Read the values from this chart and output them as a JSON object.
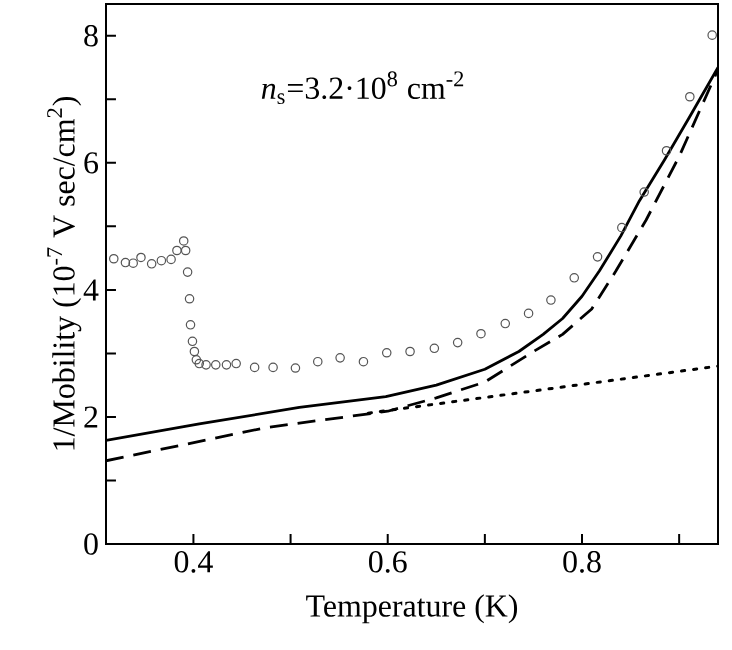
{
  "chart_data": {
    "type": "line",
    "xlabel": "Temperature (K)",
    "ylabel": "1/Mobility (10$^{-7}$ V sec/cm$^{2}$)",
    "annotations": [
      "*n*$_{s}$=3.2·10$^{8}$ cm$^{-2}$"
    ],
    "xlim": [
      0.31,
      0.94
    ],
    "ylim": [
      0,
      8.5
    ],
    "xticks": [
      0.4,
      {
        "value": 0.5,
        "label": null
      },
      0.6,
      {
        "value": 0.7,
        "label": null
      },
      0.8,
      {
        "value": 0.9,
        "label": null
      }
    ],
    "yticks": [
      0,
      {
        "value": 1,
        "label": null
      },
      2,
      {
        "value": 3,
        "label": null
      },
      4,
      {
        "value": 5,
        "label": null
      },
      6,
      {
        "value": 7,
        "label": null
      },
      8
    ],
    "grid": false,
    "series": [
      {
        "type": "scatter",
        "marker": "circle",
        "color": "#555555",
        "x": [
          0.318,
          0.33,
          0.338,
          0.346,
          0.357,
          0.367,
          0.377,
          0.383,
          0.39,
          0.392,
          0.394,
          0.396,
          0.397,
          0.399,
          0.401,
          0.403,
          0.406,
          0.413,
          0.423,
          0.434,
          0.444,
          0.463,
          0.482,
          0.505,
          0.528,
          0.551,
          0.575,
          0.599,
          0.623,
          0.648,
          0.672,
          0.696,
          0.721,
          0.745,
          0.768,
          0.792,
          0.816,
          0.841,
          0.864,
          0.887,
          0.911,
          0.934
        ],
        "values": [
          4.49,
          4.43,
          4.42,
          4.51,
          4.41,
          4.46,
          4.48,
          4.62,
          4.77,
          4.62,
          4.28,
          3.86,
          3.45,
          3.19,
          3.03,
          2.9,
          2.84,
          2.82,
          2.82,
          2.82,
          2.84,
          2.78,
          2.78,
          2.77,
          2.87,
          2.93,
          2.87,
          3.01,
          3.03,
          3.08,
          3.17,
          3.31,
          3.47,
          3.63,
          3.84,
          4.19,
          4.52,
          4.98,
          5.54,
          6.19,
          7.04,
          8.01
        ]
      },
      {
        "line_style": "solid",
        "color": "#000000",
        "x": [
          0.31,
          0.406,
          0.509,
          0.598,
          0.65,
          0.7,
          0.735,
          0.76,
          0.78,
          0.8,
          0.818,
          0.84,
          0.859,
          0.885,
          0.911,
          0.94
        ],
        "values": [
          1.63,
          1.89,
          2.15,
          2.32,
          2.5,
          2.75,
          3.03,
          3.3,
          3.55,
          3.9,
          4.3,
          4.85,
          5.4,
          6.05,
          6.73,
          7.5
        ]
      },
      {
        "line_style": "dashed",
        "color": "#000000",
        "x": [
          0.31,
          0.474,
          0.6,
          0.65,
          0.7,
          0.75,
          0.78,
          0.81,
          0.835,
          0.866,
          0.9,
          0.94
        ],
        "values": [
          1.31,
          1.83,
          2.09,
          2.3,
          2.55,
          3.03,
          3.3,
          3.7,
          4.3,
          5.1,
          6.1,
          7.47
        ]
      },
      {
        "line_style": "dotted",
        "color": "#000000",
        "x": [
          0.58,
          0.94
        ],
        "values": [
          2.06,
          2.8
        ]
      }
    ]
  }
}
